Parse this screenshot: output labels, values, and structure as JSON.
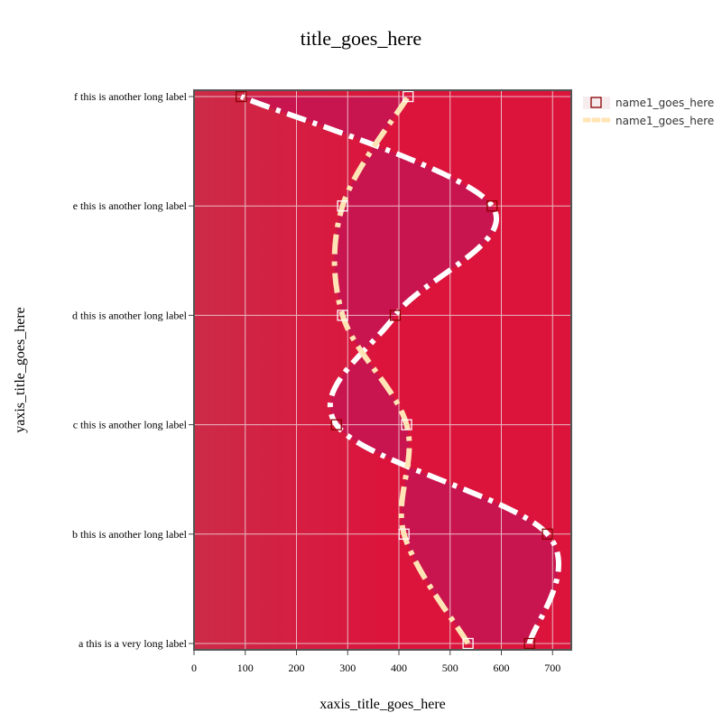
{
  "chart_data": {
    "type": "scatter",
    "title": "title_goes_here",
    "xlabel": "xaxis_title_goes_here",
    "ylabel": "yaxis_title_goes_here",
    "xlim": [
      0,
      740
    ],
    "xticks": [
      0,
      100,
      200,
      300,
      400,
      500,
      600,
      700
    ],
    "categories": [
      "a this is a very long label",
      "b this is another long label",
      "c this is another long label",
      "d this is another long label",
      "e this is another long label",
      "f this is another long label"
    ],
    "grid": true,
    "legend_position": "top-right",
    "background_color": "#dc143c",
    "series": [
      {
        "name": "name1_goes_here",
        "marker": "square-open",
        "marker_color": "#8b0000",
        "x": [
          655,
          690,
          278,
          393,
          582,
          92
        ]
      },
      {
        "name": "name1_goes_here",
        "marker": "square-open",
        "line": "dashdot-spline",
        "line_color": "#ffe4b5",
        "marker_color": "#ffffff",
        "x": [
          535,
          410,
          415,
          290,
          290,
          418
        ]
      }
    ]
  }
}
